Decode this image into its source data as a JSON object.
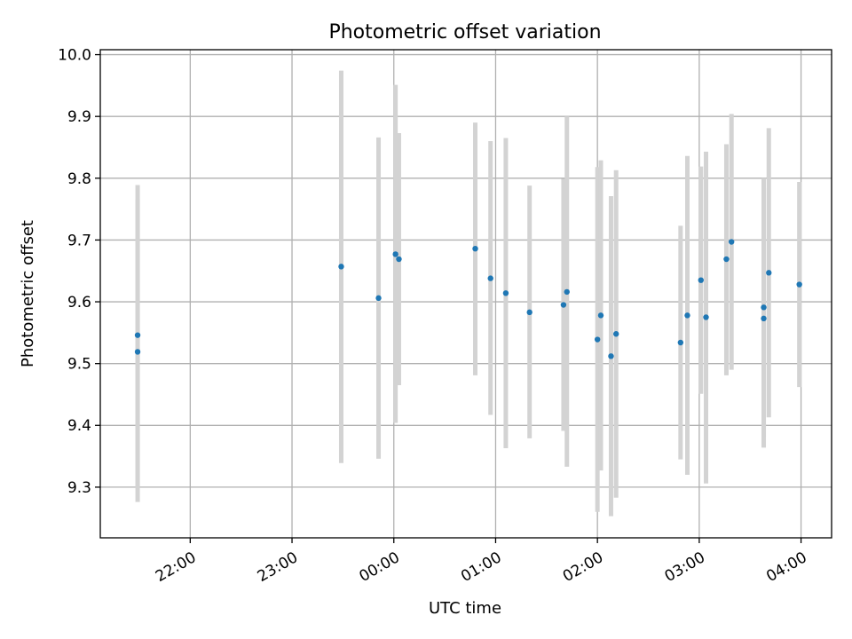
{
  "chart_data": {
    "type": "scatter",
    "title": "Photometric offset variation",
    "xlabel": "UTC time",
    "ylabel": "Photometric offset",
    "grid": true,
    "x_unit": "hours (UTC)",
    "xlim": [
      "21:07",
      "04:18"
    ],
    "ylim": [
      9.218,
      10.008
    ],
    "x_ticks": [
      {
        "label": "22:00",
        "value": "22:00"
      },
      {
        "label": "23:00",
        "value": "23:00"
      },
      {
        "label": "00:00",
        "value": "00:00"
      },
      {
        "label": "01:00",
        "value": "01:00"
      },
      {
        "label": "02:00",
        "value": "02:00"
      },
      {
        "label": "03:00",
        "value": "03:00"
      },
      {
        "label": "04:00",
        "value": "04:00"
      }
    ],
    "y_ticks": [
      {
        "label": "9.3",
        "value": 9.3
      },
      {
        "label": "9.4",
        "value": 9.4
      },
      {
        "label": "9.5",
        "value": 9.5
      },
      {
        "label": "9.6",
        "value": 9.6
      },
      {
        "label": "9.7",
        "value": 9.7
      },
      {
        "label": "9.8",
        "value": 9.8
      },
      {
        "label": "9.9",
        "value": 9.9
      },
      {
        "label": "10.0",
        "value": 10.0
      }
    ],
    "colors": {
      "point": "#1f77b4",
      "errorbar": "#d3d3d3",
      "grid": "#b0b0b0"
    },
    "points": [
      {
        "time": "21:29",
        "y": 9.546,
        "low": 9.301,
        "high": 9.789
      },
      {
        "time": "21:29",
        "y": 9.519,
        "low": 9.276,
        "high": 9.765
      },
      {
        "time": "23:29",
        "y": 9.657,
        "low": 9.339,
        "high": 9.974
      },
      {
        "time": "23:51",
        "y": 9.606,
        "low": 9.346,
        "high": 9.866
      },
      {
        "time": "00:01",
        "y": 9.677,
        "low": 9.404,
        "high": 9.951
      },
      {
        "time": "00:03",
        "y": 9.669,
        "low": 9.465,
        "high": 9.873
      },
      {
        "time": "00:48",
        "y": 9.686,
        "low": 9.481,
        "high": 9.89
      },
      {
        "time": "00:57",
        "y": 9.638,
        "low": 9.417,
        "high": 9.86
      },
      {
        "time": "01:06",
        "y": 9.614,
        "low": 9.363,
        "high": 9.865
      },
      {
        "time": "01:20",
        "y": 9.583,
        "low": 9.379,
        "high": 9.788
      },
      {
        "time": "01:40",
        "y": 9.595,
        "low": 9.391,
        "high": 9.799
      },
      {
        "time": "01:42",
        "y": 9.616,
        "low": 9.333,
        "high": 9.9
      },
      {
        "time": "02:00",
        "y": 9.539,
        "low": 9.26,
        "high": 9.818
      },
      {
        "time": "02:02",
        "y": 9.578,
        "low": 9.327,
        "high": 9.829
      },
      {
        "time": "02:08",
        "y": 9.512,
        "low": 9.253,
        "high": 9.771
      },
      {
        "time": "02:11",
        "y": 9.548,
        "low": 9.283,
        "high": 9.813
      },
      {
        "time": "02:49",
        "y": 9.534,
        "low": 9.345,
        "high": 9.723
      },
      {
        "time": "02:53",
        "y": 9.578,
        "low": 9.32,
        "high": 9.836
      },
      {
        "time": "03:01",
        "y": 9.635,
        "low": 9.451,
        "high": 9.819
      },
      {
        "time": "03:04",
        "y": 9.575,
        "low": 9.306,
        "high": 9.843
      },
      {
        "time": "03:16",
        "y": 9.669,
        "low": 9.481,
        "high": 9.855
      },
      {
        "time": "03:19",
        "y": 9.697,
        "low": 9.49,
        "high": 9.904
      },
      {
        "time": "03:38",
        "y": 9.591,
        "low": 9.381,
        "high": 9.8
      },
      {
        "time": "03:38",
        "y": 9.573,
        "low": 9.364,
        "high": 9.784
      },
      {
        "time": "03:41",
        "y": 9.647,
        "low": 9.413,
        "high": 9.881
      },
      {
        "time": "03:59",
        "y": 9.628,
        "low": 9.462,
        "high": 9.794
      }
    ]
  }
}
